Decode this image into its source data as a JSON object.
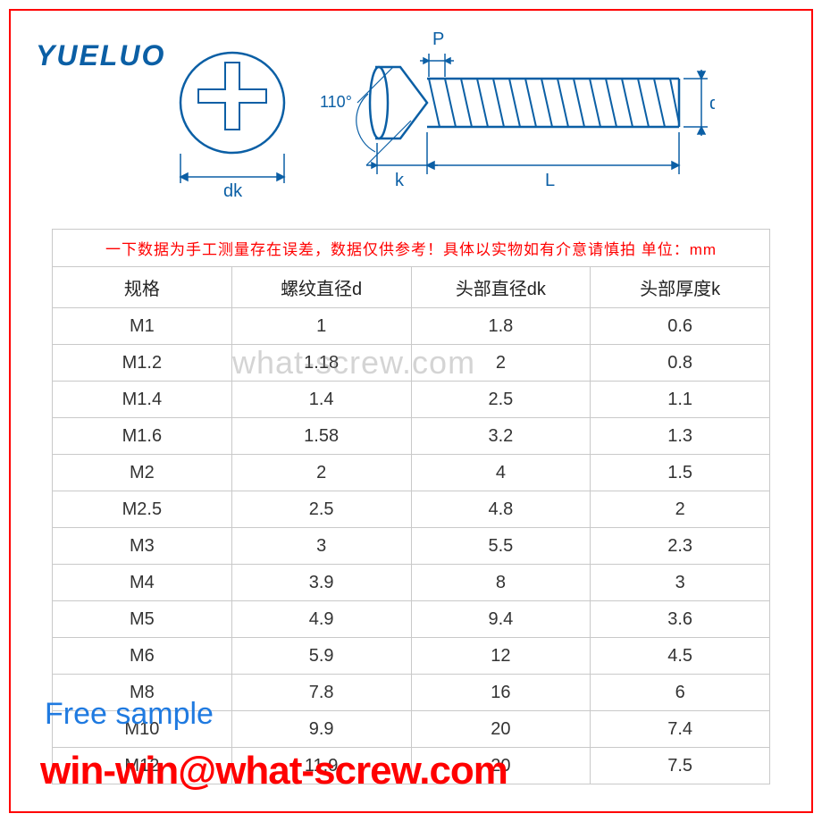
{
  "logo": {
    "text": "YUELUO",
    "color": "#0b5fa5"
  },
  "diagram": {
    "labels": {
      "dk": "dk",
      "P": "P",
      "angle": "110°",
      "k": "k",
      "L": "L",
      "d": "d"
    },
    "line_color": "#0b5fa5",
    "thread_color": "#0b5fa5"
  },
  "table": {
    "disclaimer": "一下数据为手工测量存在误差，数据仅供参考！具体以实物如有介意请慎拍 单位：mm",
    "disclaimer_color": "#ff0000",
    "border_color": "#c9c9c9",
    "text_color": "#333333",
    "font_size": 20,
    "columns": [
      "规格",
      "螺纹直径d",
      "头部直径dk",
      "头部厚度k"
    ],
    "rows": [
      [
        "M1",
        "1",
        "1.8",
        "0.6"
      ],
      [
        "M1.2",
        "1.18",
        "2",
        "0.8"
      ],
      [
        "M1.4",
        "1.4",
        "2.5",
        "1.1"
      ],
      [
        "M1.6",
        "1.58",
        "3.2",
        "1.3"
      ],
      [
        "M2",
        "2",
        "4",
        "1.5"
      ],
      [
        "M2.5",
        "2.5",
        "4.8",
        "2"
      ],
      [
        "M3",
        "3",
        "5.5",
        "2.3"
      ],
      [
        "M4",
        "3.9",
        "8",
        "3"
      ],
      [
        "M5",
        "4.9",
        "9.4",
        "3.6"
      ],
      [
        "M6",
        "5.9",
        "12",
        "4.5"
      ],
      [
        "M8",
        "7.8",
        "16",
        "6"
      ],
      [
        "M10",
        "9.9",
        "20",
        "7.4"
      ],
      [
        "M12",
        "11.9",
        "20",
        "7.5"
      ]
    ]
  },
  "watermarks": {
    "center": "what-screw.com",
    "center_color": "rgba(120,120,120,0.32)",
    "free_sample": "Free sample",
    "free_sample_color": "#1f7ae0",
    "email": "win-win@what-screw.com",
    "email_color": "#ff0000"
  },
  "border_color": "#ff0000"
}
